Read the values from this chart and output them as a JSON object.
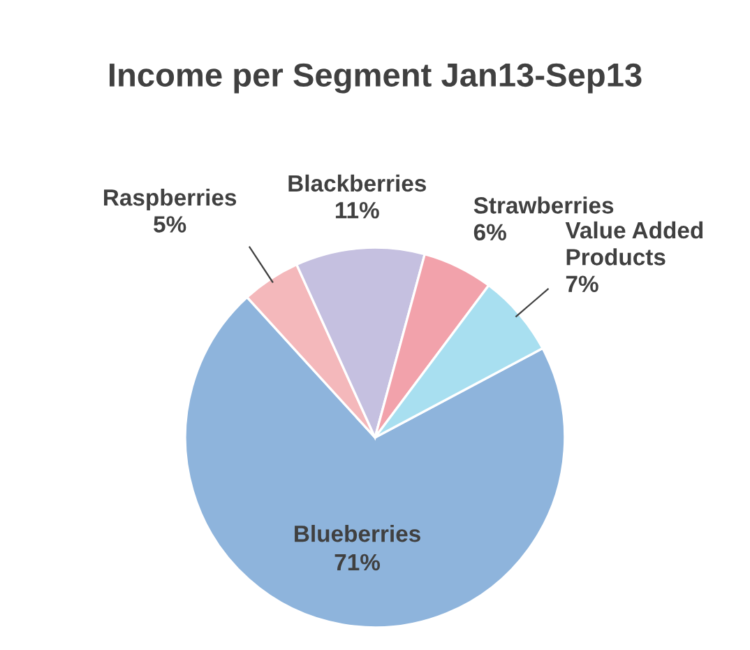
{
  "chart_data": {
    "type": "pie",
    "title": "Income per Segment Jan13-Sep13",
    "categories": [
      "Blueberries",
      "Raspberries",
      "Blackberries",
      "Strawberries",
      "Value Added\nProducts"
    ],
    "values": [
      71,
      5,
      11,
      6,
      7
    ],
    "colors": [
      "#8eb4dc",
      "#f4b8bb",
      "#c5c0e0",
      "#f2a2ab",
      "#a8dff0"
    ],
    "value_labels": [
      "71%",
      "5%",
      "11%",
      "6%",
      "7%"
    ]
  }
}
